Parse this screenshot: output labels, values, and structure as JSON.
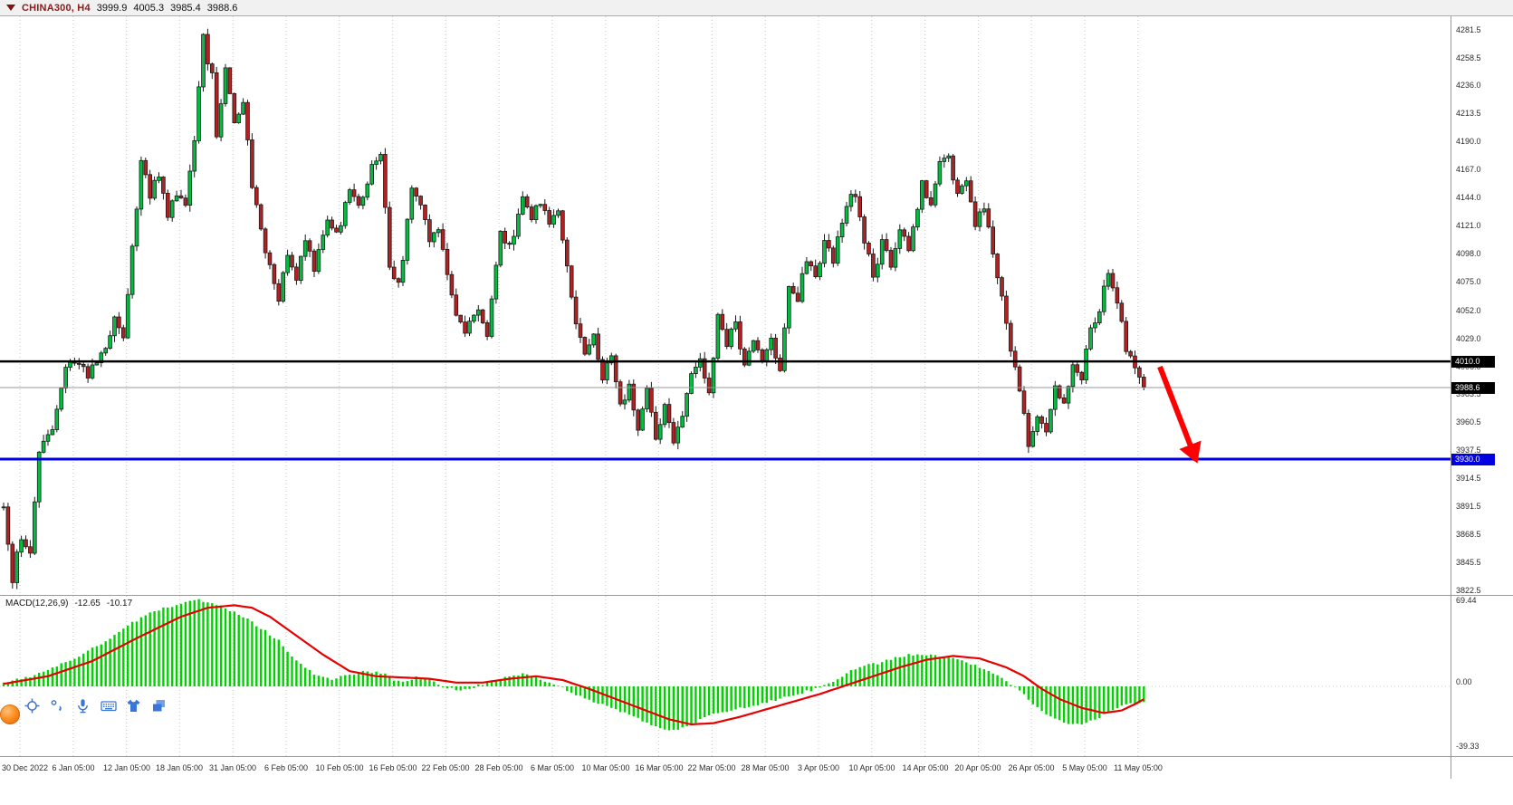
{
  "header": {
    "symbol": "CHINA300, H4",
    "open": "3999.9",
    "high": "4005.3",
    "low": "3985.4",
    "close": "3988.6"
  },
  "colors": {
    "bull": "#00bf40",
    "bear": "#b22222",
    "wick": "#1a1a1a",
    "macd_histogram": "#00d200",
    "macd_signal": "#e60000",
    "support_blue": "#0000e0",
    "resistance_black": "#000000",
    "arrow": "#ff0000",
    "grid": "#c9c9c9",
    "tag_text": "#ffffff"
  },
  "chart_data": {
    "type": "candlestick",
    "symbol": "CHINA300",
    "timeframe": "H4",
    "title": "CHINA300, H4 3999.9 4005.3 3985.4 3988.6",
    "bars": 258,
    "y_axis_range": [
      3822.5,
      4281.5
    ],
    "grid": "vertical-dotted",
    "y_axis_ticks": [
      "4281.5",
      "4258.5",
      "4236.0",
      "4213.5",
      "4190.0",
      "4167.0",
      "4144.0",
      "4121.0",
      "4098.0",
      "4075.0",
      "4052.0",
      "4029.0",
      "4006.0",
      "3983.5",
      "3960.5",
      "3937.5",
      "3914.5",
      "3891.5",
      "3868.5",
      "3845.5",
      "3822.5"
    ],
    "x_axis_labels": [
      "30 Dec 2022",
      "6 Jan 05:00",
      "12 Jan 05:00",
      "18 Jan 05:00",
      "31 Jan 05:00",
      "6 Feb 05:00",
      "10 Feb 05:00",
      "16 Feb 05:00",
      "22 Feb 05:00",
      "28 Feb 05:00",
      "6 Mar 05:00",
      "10 Mar 05:00",
      "16 Mar 05:00",
      "22 Mar 05:00",
      "28 Mar 05:00",
      "3 Apr 05:00",
      "10 Apr 05:00",
      "14 Apr 05:00",
      "20 Apr 05:00",
      "26 Apr 05:00",
      "5 May 05:00",
      "11 May 05:00"
    ],
    "levels": [
      {
        "name": "resistance-line",
        "price": 4010.0,
        "label": "4010.0",
        "color": "#000000"
      },
      {
        "name": "current-price-line",
        "price": 3988.6,
        "label": "3988.6",
        "color": "#000000"
      },
      {
        "name": "support-line",
        "price": 3930.0,
        "label": "3930.0",
        "color": "#0000e0"
      }
    ],
    "annotation_arrow": {
      "type": "down-right arrow",
      "color": "#ff0000",
      "from_price": 4003,
      "to_price": 3922,
      "position": "after last candle, pointing toward blue 3930.0 support"
    },
    "price_swings": [
      [
        0,
        3888
      ],
      [
        2,
        3832
      ],
      [
        4,
        3868
      ],
      [
        6,
        3856
      ],
      [
        8,
        3932
      ],
      [
        11,
        3958
      ],
      [
        14,
        4005
      ],
      [
        17,
        4012
      ],
      [
        19,
        3996
      ],
      [
        22,
        4016
      ],
      [
        25,
        4042
      ],
      [
        27,
        4026
      ],
      [
        29,
        4100
      ],
      [
        31,
        4178
      ],
      [
        33,
        4146
      ],
      [
        35,
        4162
      ],
      [
        37,
        4126
      ],
      [
        39,
        4150
      ],
      [
        41,
        4136
      ],
      [
        43,
        4190
      ],
      [
        45,
        4274
      ],
      [
        47,
        4242
      ],
      [
        48,
        4196
      ],
      [
        50,
        4248
      ],
      [
        52,
        4206
      ],
      [
        54,
        4224
      ],
      [
        56,
        4156
      ],
      [
        58,
        4116
      ],
      [
        60,
        4090
      ],
      [
        62,
        4062
      ],
      [
        64,
        4098
      ],
      [
        66,
        4076
      ],
      [
        68,
        4108
      ],
      [
        70,
        4086
      ],
      [
        73,
        4128
      ],
      [
        75,
        4112
      ],
      [
        78,
        4150
      ],
      [
        80,
        4136
      ],
      [
        83,
        4170
      ],
      [
        85,
        4178
      ],
      [
        87,
        4086
      ],
      [
        89,
        4072
      ],
      [
        92,
        4148
      ],
      [
        94,
        4140
      ],
      [
        96,
        4112
      ],
      [
        98,
        4122
      ],
      [
        101,
        4060
      ],
      [
        104,
        4035
      ],
      [
        107,
        4052
      ],
      [
        109,
        4030
      ],
      [
        112,
        4115
      ],
      [
        114,
        4102
      ],
      [
        117,
        4145
      ],
      [
        119,
        4128
      ],
      [
        121,
        4142
      ],
      [
        123,
        4120
      ],
      [
        125,
        4135
      ],
      [
        127,
        4085
      ],
      [
        129,
        4045
      ],
      [
        131,
        4015
      ],
      [
        133,
        4028
      ],
      [
        135,
        3996
      ],
      [
        137,
        4018
      ],
      [
        139,
        3972
      ],
      [
        141,
        3992
      ],
      [
        143,
        3956
      ],
      [
        145,
        3985
      ],
      [
        147,
        3948
      ],
      [
        149,
        3975
      ],
      [
        151,
        3940
      ],
      [
        153,
        3968
      ],
      [
        155,
        3996
      ],
      [
        157,
        4012
      ],
      [
        159,
        3986
      ],
      [
        161,
        4048
      ],
      [
        163,
        4026
      ],
      [
        165,
        4040
      ],
      [
        167,
        4006
      ],
      [
        169,
        4026
      ],
      [
        171,
        4012
      ],
      [
        173,
        4030
      ],
      [
        175,
        3998
      ],
      [
        177,
        4075
      ],
      [
        179,
        4060
      ],
      [
        181,
        4095
      ],
      [
        183,
        4076
      ],
      [
        185,
        4110
      ],
      [
        187,
        4092
      ],
      [
        190,
        4140
      ],
      [
        192,
        4148
      ],
      [
        194,
        4106
      ],
      [
        196,
        4082
      ],
      [
        198,
        4106
      ],
      [
        200,
        4090
      ],
      [
        202,
        4118
      ],
      [
        204,
        4102
      ],
      [
        207,
        4155
      ],
      [
        209,
        4142
      ],
      [
        211,
        4170
      ],
      [
        213,
        4175
      ],
      [
        215,
        4146
      ],
      [
        217,
        4160
      ],
      [
        219,
        4122
      ],
      [
        221,
        4136
      ],
      [
        223,
        4096
      ],
      [
        225,
        4060
      ],
      [
        227,
        4020
      ],
      [
        229,
        3986
      ],
      [
        231,
        3940
      ],
      [
        233,
        3966
      ],
      [
        235,
        3952
      ],
      [
        237,
        3990
      ],
      [
        239,
        3976
      ],
      [
        241,
        4010
      ],
      [
        243,
        3998
      ],
      [
        245,
        4035
      ],
      [
        247,
        4052
      ],
      [
        249,
        4086
      ],
      [
        251,
        4060
      ],
      [
        253,
        4020
      ],
      [
        255,
        4004
      ],
      [
        257,
        3988.6
      ]
    ],
    "macd": {
      "label": "MACD(12,26,9)",
      "macd_value": "-12.65",
      "signal_value": "-10.17",
      "axis_ticks": [
        "69.44",
        "0.00",
        "-39.33"
      ],
      "histogram_anchors": [
        [
          0,
          3
        ],
        [
          4,
          6
        ],
        [
          8,
          10
        ],
        [
          12,
          16
        ],
        [
          16,
          22
        ],
        [
          20,
          30
        ],
        [
          24,
          38
        ],
        [
          28,
          48
        ],
        [
          32,
          56
        ],
        [
          36,
          62
        ],
        [
          40,
          65
        ],
        [
          44,
          68
        ],
        [
          47,
          66
        ],
        [
          50,
          62
        ],
        [
          54,
          55
        ],
        [
          58,
          46
        ],
        [
          62,
          36
        ],
        [
          66,
          20
        ],
        [
          70,
          10
        ],
        [
          74,
          6
        ],
        [
          78,
          9
        ],
        [
          82,
          12
        ],
        [
          86,
          10
        ],
        [
          88,
          4
        ],
        [
          90,
          3
        ],
        [
          93,
          7
        ],
        [
          96,
          5
        ],
        [
          99,
          0
        ],
        [
          102,
          -3
        ],
        [
          105,
          -2
        ],
        [
          108,
          2
        ],
        [
          111,
          5
        ],
        [
          114,
          8
        ],
        [
          117,
          10
        ],
        [
          120,
          7
        ],
        [
          123,
          3
        ],
        [
          126,
          -1
        ],
        [
          129,
          -7
        ],
        [
          132,
          -11
        ],
        [
          135,
          -14
        ],
        [
          138,
          -18
        ],
        [
          141,
          -23
        ],
        [
          144,
          -27
        ],
        [
          147,
          -31
        ],
        [
          150,
          -35
        ],
        [
          153,
          -33
        ],
        [
          156,
          -28
        ],
        [
          159,
          -23
        ],
        [
          162,
          -20
        ],
        [
          165,
          -18
        ],
        [
          168,
          -16
        ],
        [
          171,
          -13
        ],
        [
          174,
          -11
        ],
        [
          177,
          -8
        ],
        [
          180,
          -5
        ],
        [
          183,
          -2
        ],
        [
          186,
          2
        ],
        [
          189,
          8
        ],
        [
          192,
          14
        ],
        [
          195,
          17
        ],
        [
          198,
          19
        ],
        [
          201,
          23
        ],
        [
          204,
          25
        ],
        [
          207,
          25
        ],
        [
          210,
          24
        ],
        [
          213,
          23
        ],
        [
          216,
          20
        ],
        [
          219,
          17
        ],
        [
          222,
          12
        ],
        [
          225,
          6
        ],
        [
          228,
          0
        ],
        [
          231,
          -10
        ],
        [
          234,
          -20
        ],
        [
          237,
          -26
        ],
        [
          240,
          -29
        ],
        [
          243,
          -30
        ],
        [
          246,
          -26
        ],
        [
          249,
          -20
        ],
        [
          252,
          -15
        ],
        [
          255,
          -13
        ],
        [
          257,
          -12.65
        ]
      ],
      "signal_anchors": [
        [
          0,
          2
        ],
        [
          10,
          8
        ],
        [
          20,
          20
        ],
        [
          30,
          38
        ],
        [
          40,
          55
        ],
        [
          46,
          62
        ],
        [
          52,
          64
        ],
        [
          56,
          62
        ],
        [
          60,
          55
        ],
        [
          66,
          40
        ],
        [
          72,
          25
        ],
        [
          78,
          12
        ],
        [
          84,
          8
        ],
        [
          90,
          7
        ],
        [
          96,
          6
        ],
        [
          102,
          3
        ],
        [
          108,
          3
        ],
        [
          114,
          6
        ],
        [
          120,
          8
        ],
        [
          126,
          5
        ],
        [
          132,
          -2
        ],
        [
          138,
          -10
        ],
        [
          144,
          -18
        ],
        [
          150,
          -26
        ],
        [
          155,
          -30
        ],
        [
          160,
          -29
        ],
        [
          166,
          -24
        ],
        [
          172,
          -18
        ],
        [
          178,
          -12
        ],
        [
          184,
          -6
        ],
        [
          190,
          1
        ],
        [
          196,
          8
        ],
        [
          202,
          15
        ],
        [
          208,
          21
        ],
        [
          214,
          24
        ],
        [
          220,
          22
        ],
        [
          226,
          15
        ],
        [
          230,
          8
        ],
        [
          234,
          -2
        ],
        [
          238,
          -10
        ],
        [
          243,
          -17
        ],
        [
          248,
          -21
        ],
        [
          252,
          -19
        ],
        [
          255,
          -14
        ],
        [
          257,
          -10.17
        ]
      ]
    }
  },
  "toolbar": {
    "icons": [
      "crosshair-icon",
      "handwriting-icon",
      "microphone-icon",
      "keyboard-icon",
      "theme-icon",
      "windows-icon"
    ]
  }
}
